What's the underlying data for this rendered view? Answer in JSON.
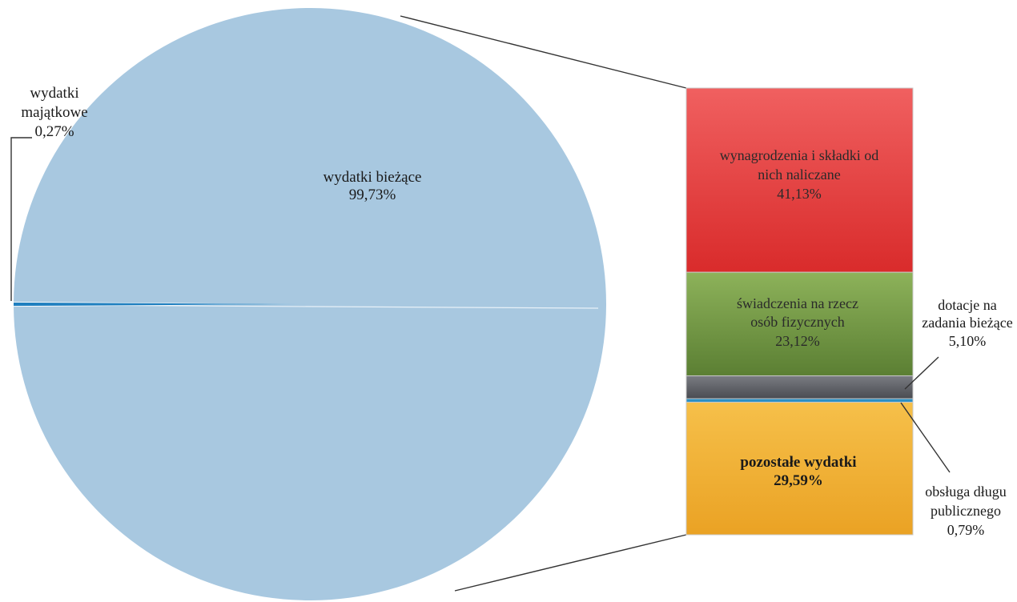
{
  "chart_data": {
    "type": "pie",
    "pie": {
      "slices": [
        {
          "label": "wydatki bieżące",
          "value": 99.73,
          "value_label": "99,73%",
          "color": "#a8c8e0"
        },
        {
          "label": "wydatki majątkowe",
          "value": 0.27,
          "value_label": "0,27%",
          "color": "#1f7fbf"
        }
      ]
    },
    "bar_of_pie": {
      "segments": [
        {
          "label": "wynagrodzenia i składki od nich naliczane",
          "value": 41.13,
          "value_label": "41,13%",
          "color": "#e53a3a"
        },
        {
          "label": "świadczenia na rzecz osób fizycznych",
          "value": 23.12,
          "value_label": "23,12%",
          "color": "#6f9443"
        },
        {
          "label": "dotacje na zadania bieżące",
          "value": 5.1,
          "value_label": "5,10%",
          "color": "#5e6066"
        },
        {
          "label": "obsługa długu publicznego",
          "value": 0.79,
          "value_label": "0,79%",
          "color": "#2a8fc4"
        },
        {
          "label": "pozostałe wydatki",
          "value": 29.59,
          "value_label": "29,59%",
          "color": "#f0b030"
        }
      ]
    },
    "text": {
      "pie_main_name": "wydatki bieżące",
      "pie_main_value": "99,73%",
      "pie_small_name_line1": "wydatki",
      "pie_small_name_line2": "majątkowe",
      "pie_small_value": "0,27%",
      "seg1_line1": "wynagrodzenia i składki od",
      "seg1_line2": "nich naliczane",
      "seg1_value": "41,13%",
      "seg2_line1": "świadczenia na rzecz",
      "seg2_line2": "osób fizycznych",
      "seg2_value": "23,12%",
      "seg3_line1": "dotacje na",
      "seg3_line2": "zadania bieżące",
      "seg3_value": "5,10%",
      "seg4_line1": "obsługa długu",
      "seg4_line2": "publicznego",
      "seg4_value": "0,79%",
      "seg5_line1": "pozostałe wydatki",
      "seg5_value": "29,59%"
    }
  }
}
